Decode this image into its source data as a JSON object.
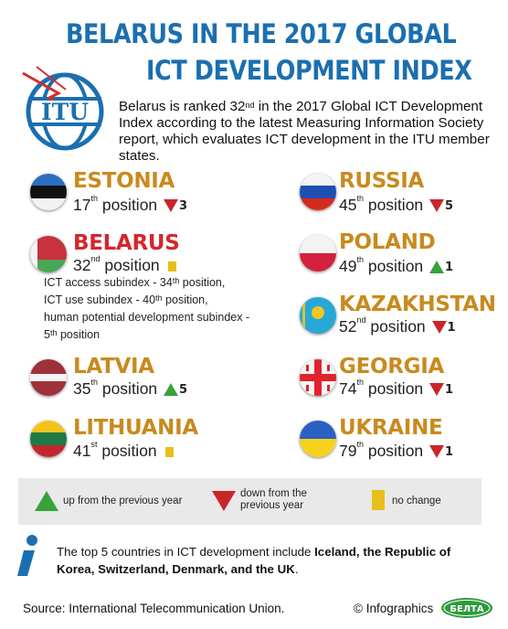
{
  "header": {
    "title_line1": "BELARUS IN THE 2017 GLOBAL",
    "title_line2": "ICT DEVELOPMENT INDEX",
    "logo_text": "ITU"
  },
  "intro": {
    "p1": "Belarus is ranked 32",
    "p1_sup": "nd",
    "p2": " in the 2017 Global ICT Development Index according to the latest Measuring Information Society report, which evaluates ICT development in the ITU member states."
  },
  "countries": {
    "estonia": {
      "name": "ESTONIA",
      "rank": "17",
      "sup": "th",
      "word": " position",
      "change": "3",
      "trend": "down"
    },
    "belarus": {
      "name": "BELARUS",
      "rank": "32",
      "sup": "nd",
      "word": " position",
      "change": "",
      "trend": "same"
    },
    "latvia": {
      "name": "LATVIA",
      "rank": "35",
      "sup": "th",
      "word": " position",
      "change": "5",
      "trend": "up"
    },
    "lithuania": {
      "name": "LITHUANIA",
      "rank": "41",
      "sup": "st",
      "word": " position",
      "change": "",
      "trend": "same"
    },
    "russia": {
      "name": "RUSSIA",
      "rank": "45",
      "sup": "th",
      "word": " position",
      "change": "5",
      "trend": "down"
    },
    "poland": {
      "name": "POLAND",
      "rank": "49",
      "sup": "th",
      "word": " position",
      "change": "1",
      "trend": "up"
    },
    "kazakhstan": {
      "name": "KAZAKHSTAN",
      "rank": "52",
      "sup": "nd",
      "word": " position",
      "change": "1",
      "trend": "down"
    },
    "georgia": {
      "name": "GEORGIA",
      "rank": "74",
      "sup": "th",
      "word": " position",
      "change": "1",
      "trend": "down"
    },
    "ukraine": {
      "name": "UKRAINE",
      "rank": "79",
      "sup": "th",
      "word": " position",
      "change": "1",
      "trend": "down"
    }
  },
  "belarus_subindex": {
    "line1": "ICT access subindex - 34",
    "line1_sup": "th",
    "line1_end": " position,",
    "line2": "ICT use subindex - 40",
    "line2_sup": "th",
    "line2_end": " position,",
    "line3": "human potential development subindex -",
    "line4": "5",
    "line4_sup": "th",
    "line4_end": " position"
  },
  "legend": {
    "up": "up from the previous year",
    "down_line1": "down from the",
    "down_line2": "previous year",
    "same": "no change"
  },
  "note": {
    "text_start": "The top 5 countries in ICT development include ",
    "bold": "Iceland, the Republic of Korea, Switzerland, Denmark, and the UK",
    "text_end": "."
  },
  "footer": {
    "source": "Source: International Telecommunication Union.",
    "credit": "© Infographics",
    "belta": "БЕЛТА"
  },
  "colors": {
    "title_blue": "#1b6fb0",
    "country_gold": "#c98a1e",
    "up_green": "#38a33a",
    "down_red": "#c9262b",
    "same_yellow": "#e8bf1b"
  }
}
